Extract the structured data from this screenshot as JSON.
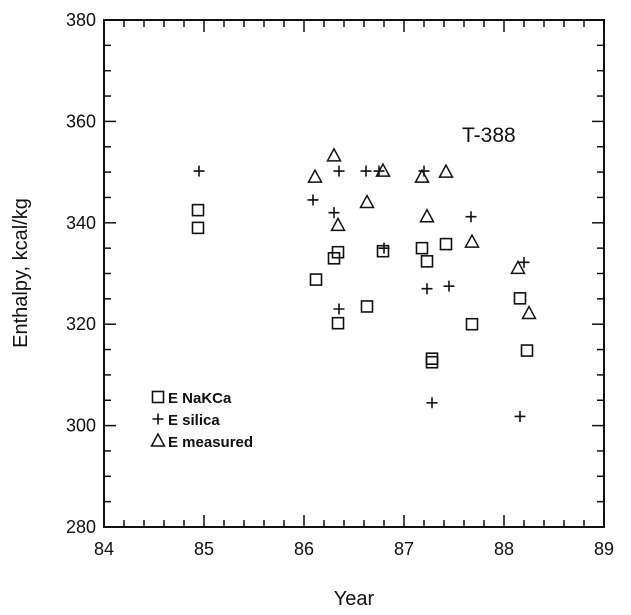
{
  "chart_data": {
    "type": "scatter",
    "title": "",
    "annotation": "T-388",
    "xlabel": "Year",
    "ylabel": "Enthalpy, kcal/kg",
    "xlim": [
      84,
      89
    ],
    "ylim": [
      280,
      380
    ],
    "xticks": [
      84,
      85,
      86,
      87,
      88,
      89
    ],
    "yticks": [
      280,
      300,
      320,
      340,
      360,
      380
    ],
    "grid": false,
    "legend_position": "lower-left",
    "series": [
      {
        "name": "E NaKCa",
        "marker": "square",
        "points": [
          [
            84.94,
            342.5
          ],
          [
            84.94,
            339.0
          ],
          [
            86.12,
            328.8
          ],
          [
            86.3,
            333.0
          ],
          [
            86.34,
            334.2
          ],
          [
            86.34,
            320.2
          ],
          [
            86.63,
            323.5
          ],
          [
            86.79,
            334.4
          ],
          [
            87.18,
            335.0
          ],
          [
            87.23,
            332.4
          ],
          [
            87.28,
            313.2
          ],
          [
            87.28,
            312.5
          ],
          [
            87.42,
            335.8
          ],
          [
            87.68,
            320.0
          ],
          [
            88.16,
            325.1
          ],
          [
            88.23,
            314.8
          ]
        ]
      },
      {
        "name": "E silica",
        "marker": "plus",
        "points": [
          [
            84.95,
            350.2
          ],
          [
            86.09,
            344.5
          ],
          [
            86.3,
            342.0
          ],
          [
            86.35,
            350.2
          ],
          [
            86.35,
            323.0
          ],
          [
            86.62,
            350.2
          ],
          [
            86.75,
            350.2
          ],
          [
            86.8,
            335.0
          ],
          [
            87.2,
            350.2
          ],
          [
            87.23,
            327.0
          ],
          [
            87.28,
            304.5
          ],
          [
            87.45,
            327.5
          ],
          [
            87.67,
            341.2
          ],
          [
            88.16,
            301.8
          ],
          [
            88.2,
            332.2
          ]
        ]
      },
      {
        "name": "E measured",
        "marker": "triangle",
        "points": [
          [
            86.11,
            349.0
          ],
          [
            86.3,
            353.2
          ],
          [
            86.34,
            339.5
          ],
          [
            86.63,
            344.0
          ],
          [
            86.79,
            350.2
          ],
          [
            87.18,
            349.0
          ],
          [
            87.23,
            341.2
          ],
          [
            87.42,
            350.0
          ],
          [
            87.68,
            336.2
          ],
          [
            88.14,
            331.0
          ],
          [
            88.25,
            322.1
          ]
        ]
      }
    ]
  }
}
